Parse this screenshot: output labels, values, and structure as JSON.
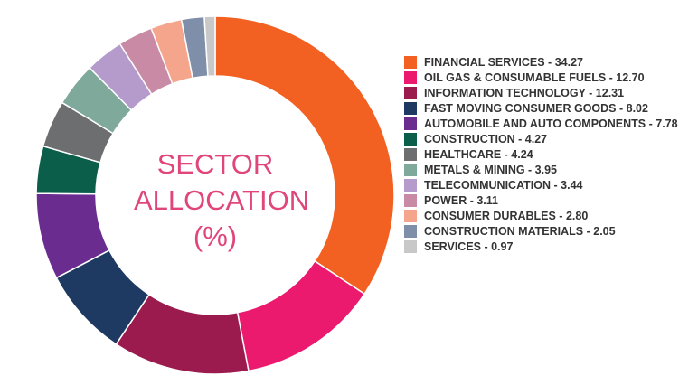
{
  "chart_data": {
    "type": "donut",
    "title": "SECTOR ALLOCATION (%)",
    "categories": [
      "FINANCIAL SERVICES - 34.27",
      "OIL GAS & CONSUMABLE FUELS - 12.70",
      "INFORMATION TECHNOLOGY - 12.31",
      "FAST MOVING CONSUMER GOODS - 8.02",
      "AUTOMOBILE AND AUTO COMPONENTS - 7.78",
      "CONSTRUCTION - 4.27",
      "HEALTHCARE - 4.24",
      "METALS & MINING - 3.95",
      "TELECOMMUNICATION - 3.44",
      "POWER - 3.11",
      "CONSUMER DURABLES - 2.80",
      "CONSTRUCTION MATERIALS - 2.05",
      "SERVICES - 0.97"
    ],
    "values": [
      34.27,
      12.7,
      12.31,
      8.02,
      7.78,
      4.27,
      4.24,
      3.95,
      3.44,
      3.11,
      2.8,
      2.05,
      0.97
    ],
    "colors": [
      "#f26122",
      "#ec1a6e",
      "#9b1b4f",
      "#1e3a63",
      "#6a2d8f",
      "#0b5e4a",
      "#6d6e70",
      "#7fa99b",
      "#b59bcc",
      "#c98aa5",
      "#f5a58c",
      "#7f8fa9",
      "#c8c8c8"
    ],
    "legend": "right"
  }
}
